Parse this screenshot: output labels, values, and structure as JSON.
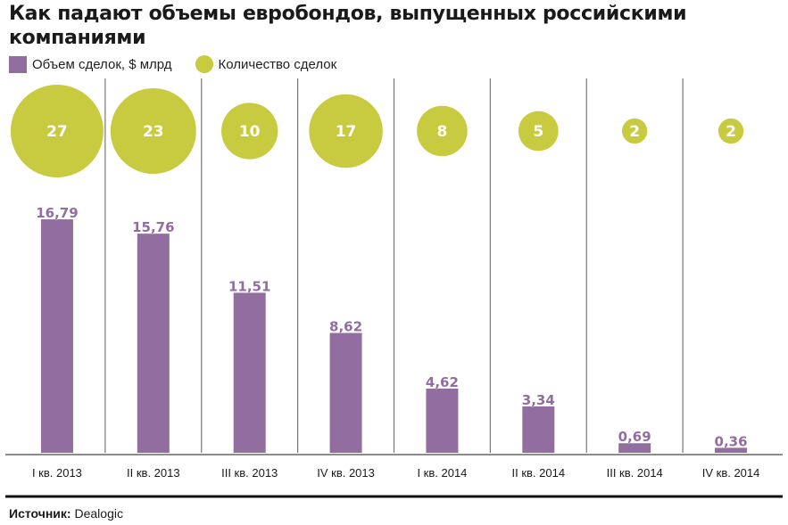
{
  "chart_data": {
    "type": "bar",
    "title": "Как падают объемы евробондов, выпущенных российскими компаниями",
    "xlabel": "",
    "ylabel": "",
    "categories": [
      "I кв. 2013",
      "II кв. 2013",
      "III кв. 2013",
      "IV кв. 2013",
      "I кв. 2014",
      "II кв. 2014",
      "III кв. 2014",
      "IV кв. 2014"
    ],
    "series": [
      {
        "name": "Объем сделок, $ млрд",
        "kind": "bar",
        "color": "#926ea0",
        "values": [
          16.79,
          15.76,
          11.51,
          8.62,
          4.62,
          3.34,
          0.69,
          0.36
        ],
        "labels": [
          "16,79",
          "15,76",
          "11,51",
          "8,62",
          "4,62",
          "3,34",
          "0,69",
          "0,36"
        ]
      },
      {
        "name": "Количество сделок",
        "kind": "bubble",
        "color": "#c8ca40",
        "values": [
          27,
          23,
          10,
          17,
          8,
          5,
          2,
          2
        ]
      }
    ],
    "ylim": [
      0,
      17.5
    ],
    "grid": false,
    "legend_position": "top-left"
  },
  "legend": {
    "volume_label": "Объем сделок, $ млрд",
    "count_label": "Количество сделок"
  },
  "source": {
    "label": "Источник:",
    "value": "Dealogic"
  }
}
